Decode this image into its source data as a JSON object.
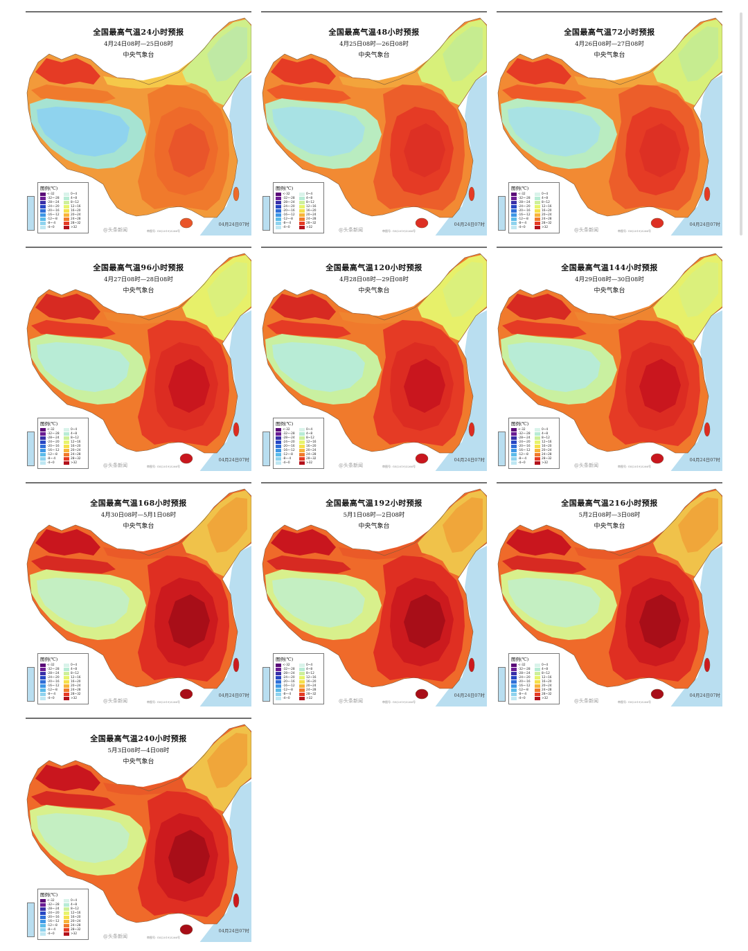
{
  "issuer": "中央气象台",
  "legend": {
    "title": "图例(℃)",
    "items": [
      {
        "label": "<-32",
        "color": "#5a0a78"
      },
      {
        "label": "-32~-28",
        "color": "#6b1d94"
      },
      {
        "label": "-28~-24",
        "color": "#3a2fa8"
      },
      {
        "label": "-24~-20",
        "color": "#2747c4"
      },
      {
        "label": "-20~-16",
        "color": "#2f6fd8"
      },
      {
        "label": "-16~-12",
        "color": "#3e97e6"
      },
      {
        "label": "-12~-8",
        "color": "#5cbbe9"
      },
      {
        "label": "-8~-4",
        "color": "#8fd3ee"
      },
      {
        "label": "-4~0",
        "color": "#bfe7f2"
      },
      {
        "label": "0~4",
        "color": "#d9f3ea"
      },
      {
        "label": "4~8",
        "color": "#b8ecd6"
      },
      {
        "label": "8~12",
        "color": "#cdf09a"
      },
      {
        "label": "12~16",
        "color": "#e7f46c"
      },
      {
        "label": "16~20",
        "color": "#f5e04a"
      },
      {
        "label": "20~24",
        "color": "#f8b43a"
      },
      {
        "label": "24~28",
        "color": "#f07a2c"
      },
      {
        "label": "28~32",
        "color": "#e53b25"
      },
      {
        "label": ">32",
        "color": "#b3121c"
      }
    ]
  },
  "stamp": "04月24日07时",
  "watermark": "@头条新闻",
  "small_note": "审图号: GS(2019)3266号",
  "maps": [
    {
      "title": "全国最高气温24小时预报",
      "period": "4月24日08时—25日08时",
      "intensity": 0
    },
    {
      "title": "全国最高气温48小时预报",
      "period": "4月25日08时—26日08时",
      "intensity": 1
    },
    {
      "title": "全国最高气温72小时预报",
      "period": "4月26日08时—27日08时",
      "intensity": 1
    },
    {
      "title": "全国最高气温96小时预报",
      "period": "4月27日08时—28日08时",
      "intensity": 2
    },
    {
      "title": "全国最高气温120小时预报",
      "period": "4月28日08时—29日08时",
      "intensity": 2
    },
    {
      "title": "全国最高气温144小时预报",
      "period": "4月29日08时—30日08时",
      "intensity": 2
    },
    {
      "title": "全国最高气温168小时预报",
      "period": "4月30日08时—5月1日08时",
      "intensity": 3
    },
    {
      "title": "全国最高气温192小时预报",
      "period": "5月1日08时—2日08时",
      "intensity": 3
    },
    {
      "title": "全国最高气温216小时预报",
      "period": "5月2日08时—3日08时",
      "intensity": 3
    },
    {
      "title": "全国最高气温240小时预报",
      "period": "5月3日08时—4日08时",
      "intensity": 3
    }
  ]
}
